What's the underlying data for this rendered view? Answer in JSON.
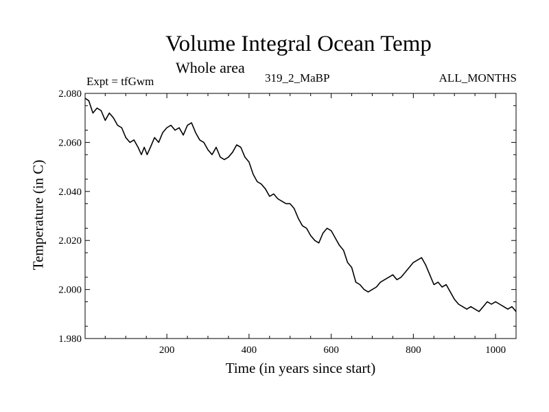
{
  "chart_data": {
    "type": "line",
    "title": "Volume Integral Ocean Temp",
    "subtitle": "Whole area",
    "annotations": {
      "left": "Expt = tfGwm",
      "center": "319_2_MaBP",
      "right": "ALL_MONTHS"
    },
    "xlabel": "Time (in years since start)",
    "ylabel": "Temperature (in C)",
    "xlim": [
      1,
      1050
    ],
    "ylim": [
      1.98,
      2.08
    ],
    "xticks": [
      200,
      400,
      600,
      800,
      1000
    ],
    "xtick_labels": [
      "200",
      "400",
      "600",
      "800",
      "1000"
    ],
    "yticks": [
      1.98,
      2.0,
      2.02,
      2.04,
      2.06,
      2.08
    ],
    "ytick_labels": [
      "1.980",
      "2.000",
      "2.020",
      "2.040",
      "2.060",
      "2.080"
    ],
    "series": [
      {
        "name": "Volume Integral Ocean Temp",
        "color": "#000000",
        "x": [
          1,
          10,
          20,
          30,
          40,
          50,
          60,
          70,
          80,
          90,
          100,
          110,
          120,
          130,
          138,
          145,
          152,
          160,
          170,
          180,
          190,
          200,
          210,
          220,
          230,
          240,
          250,
          260,
          270,
          280,
          290,
          300,
          310,
          320,
          330,
          340,
          350,
          360,
          370,
          380,
          390,
          400,
          410,
          420,
          430,
          440,
          450,
          460,
          470,
          480,
          490,
          500,
          510,
          520,
          530,
          540,
          550,
          560,
          570,
          580,
          590,
          600,
          610,
          620,
          630,
          640,
          650,
          660,
          670,
          680,
          690,
          700,
          710,
          720,
          730,
          740,
          750,
          760,
          770,
          780,
          790,
          800,
          810,
          820,
          830,
          840,
          850,
          860,
          870,
          880,
          890,
          900,
          910,
          920,
          930,
          940,
          950,
          960,
          970,
          980,
          990,
          1000,
          1010,
          1020,
          1030,
          1040,
          1050
        ],
        "values": [
          2.078,
          2.077,
          2.072,
          2.074,
          2.073,
          2.069,
          2.072,
          2.07,
          2.067,
          2.066,
          2.062,
          2.06,
          2.061,
          2.058,
          2.055,
          2.058,
          2.055,
          2.058,
          2.062,
          2.06,
          2.064,
          2.066,
          2.067,
          2.065,
          2.066,
          2.063,
          2.067,
          2.068,
          2.064,
          2.061,
          2.06,
          2.057,
          2.055,
          2.058,
          2.054,
          2.053,
          2.054,
          2.056,
          2.059,
          2.058,
          2.054,
          2.052,
          2.047,
          2.044,
          2.043,
          2.041,
          2.038,
          2.039,
          2.037,
          2.036,
          2.035,
          2.035,
          2.033,
          2.029,
          2.026,
          2.025,
          2.022,
          2.02,
          2.019,
          2.023,
          2.025,
          2.024,
          2.021,
          2.018,
          2.016,
          2.011,
          2.009,
          2.003,
          2.002,
          2.0,
          1.999,
          2.0,
          2.001,
          2.003,
          2.004,
          2.005,
          2.006,
          2.004,
          2.005,
          2.007,
          2.009,
          2.011,
          2.012,
          2.013,
          2.01,
          2.006,
          2.002,
          2.003,
          2.001,
          2.002,
          1.999,
          1.996,
          1.994,
          1.993,
          1.992,
          1.993,
          1.992,
          1.991,
          1.993,
          1.995,
          1.994,
          1.995,
          1.994,
          1.993,
          1.992,
          1.993,
          1.991
        ]
      }
    ]
  }
}
